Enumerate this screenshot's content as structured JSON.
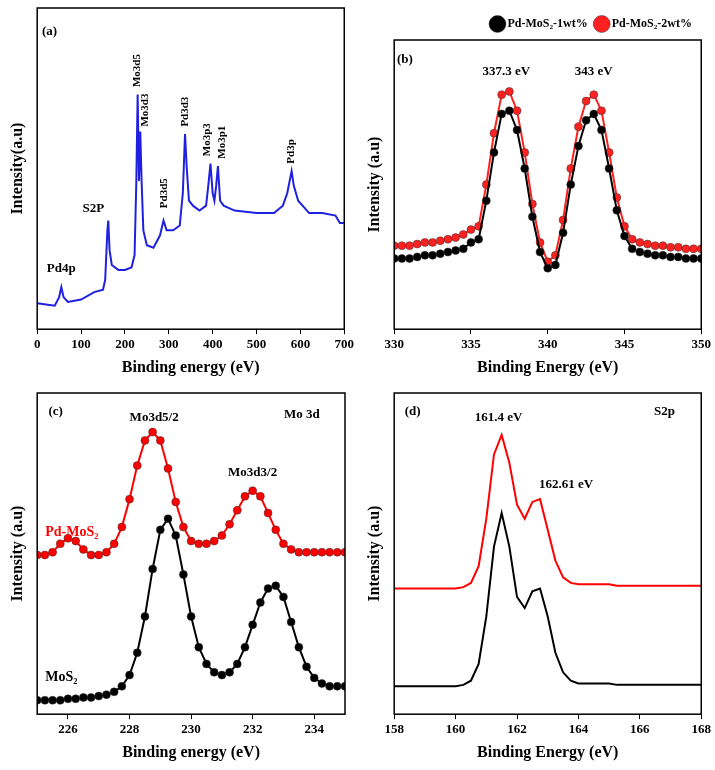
{
  "chart_data": [
    {
      "type": "line",
      "x_label": "Binding energy (eV)",
      "y_label": "Intensity(a.u)",
      "x": [
        0,
        20,
        40,
        50,
        55,
        60,
        70,
        100,
        130,
        150,
        155,
        160,
        162,
        165,
        170,
        185,
        200,
        215,
        222,
        226,
        229,
        232,
        235,
        238,
        242,
        250,
        265,
        280,
        288,
        295,
        310,
        325,
        332,
        337,
        341,
        346,
        355,
        370,
        385,
        390,
        395,
        400,
        404,
        408,
        412,
        417,
        425,
        450,
        500,
        540,
        560,
        570,
        580,
        585,
        595,
        620,
        650,
        680,
        690,
        700
      ],
      "series": [
        {
          "color": "#2020e0",
          "line_style": "solid",
          "values": [
            10.5,
            10,
            9.5,
            13,
            17,
            13,
            11,
            12,
            15,
            16,
            20,
            40,
            44,
            32,
            26,
            24,
            24,
            25,
            30,
            60,
            95,
            60,
            80,
            60,
            40,
            34,
            33,
            38,
            44,
            40,
            40,
            42,
            55,
            79,
            65,
            52,
            50,
            48,
            50,
            58,
            67,
            55,
            52,
            58,
            66,
            52,
            50,
            48,
            47,
            47,
            50,
            55,
            64,
            58,
            52,
            47,
            47,
            46,
            43,
            43
          ]
        }
      ],
      "xlim": [
        0,
        700
      ],
      "xticks": [
        0,
        100,
        200,
        300,
        400,
        500,
        600,
        700
      ],
      "ylim": [
        0,
        130
      ],
      "grid": false,
      "tick_labels": "x",
      "annotations": [
        {
          "text": "(a)",
          "x": 28,
          "y": 118
        },
        {
          "text": "Pd4p",
          "x": 55,
          "y": 22
        },
        {
          "text": "S2P",
          "x": 128,
          "y": 46
        },
        {
          "text": "Mo3d5",
          "x": 229,
          "y": 98
        },
        {
          "text": "Mo3d3",
          "x": 246,
          "y": 82
        },
        {
          "text": "Pd3d5",
          "x": 290,
          "y": 49
        },
        {
          "text": "Pd3d3",
          "x": 337,
          "y": 82
        },
        {
          "text": "Mo3p3",
          "x": 388,
          "y": 70
        },
        {
          "text": "Mo3p1",
          "x": 421,
          "y": 69
        },
        {
          "text": "Pd3p",
          "x": 580,
          "y": 67
        }
      ]
    },
    {
      "type": "line",
      "x_label": "Binding Energy (eV)",
      "y_label": "Intensity (a.u)",
      "x": [
        330,
        330.5,
        331,
        331.5,
        332,
        332.5,
        333,
        333.5,
        334,
        334.5,
        335,
        335.5,
        336,
        336.5,
        337,
        337.5,
        338,
        338.5,
        339,
        339.5,
        340,
        340.5,
        341,
        341.5,
        342,
        342.5,
        343,
        343.5,
        344,
        344.5,
        345,
        345.5,
        346,
        346.5,
        347,
        347.5,
        348,
        348.5,
        349,
        349.5,
        350
      ],
      "series": [
        {
          "name": "Pd-MoS₂-1wt%",
          "color": "#000000",
          "marker": "circle",
          "line_style": "solid",
          "values": [
            32,
            32,
            32,
            32.5,
            33,
            33,
            33.5,
            34,
            34.5,
            35,
            37,
            38,
            50,
            65,
            77,
            78,
            72,
            60,
            45,
            34,
            29,
            30,
            40,
            55,
            67,
            75,
            77,
            72,
            60,
            47,
            39,
            35,
            34,
            33.5,
            33,
            33,
            32.5,
            32.5,
            32,
            32,
            32
          ]
        },
        {
          "name": "Pd-MoS₂-2wt%",
          "color": "#ff2020",
          "marker": "circle",
          "line_style": "solid",
          "values": [
            36,
            36,
            36,
            36.5,
            37,
            37,
            37.5,
            38,
            38.5,
            39.5,
            41,
            42,
            55,
            71,
            83,
            84,
            78,
            65,
            49,
            37,
            31,
            33,
            44,
            60,
            73,
            81,
            83,
            78,
            65,
            51,
            42,
            38,
            37,
            36.5,
            36,
            36,
            35.5,
            35.5,
            35,
            35,
            35
          ]
        }
      ],
      "xlim": [
        330,
        350
      ],
      "xticks": [
        330,
        335,
        340,
        345,
        350
      ],
      "ylim": [
        10,
        100
      ],
      "grid": false,
      "tick_labels": "x",
      "legend": "top-right",
      "annotations": [
        {
          "text": "(b)",
          "x": 330.7,
          "y": 92
        },
        {
          "text": "337.3 eV",
          "x": 337.3,
          "y": 88
        },
        {
          "text": "343 eV",
          "x": 343,
          "y": 88
        }
      ]
    },
    {
      "type": "line",
      "x_label": "Binding energy (eV)",
      "y_label": "Intensity (a.u)",
      "x": [
        225,
        225.25,
        225.5,
        225.75,
        226,
        226.25,
        226.5,
        226.75,
        227,
        227.25,
        227.5,
        227.75,
        228,
        228.25,
        228.5,
        228.75,
        229,
        229.25,
        229.5,
        229.75,
        230,
        230.25,
        230.5,
        230.75,
        231,
        231.25,
        231.5,
        231.75,
        232,
        232.25,
        232.5,
        232.75,
        233,
        233.25,
        233.5,
        233.75,
        234,
        234.25,
        234.5,
        234.75,
        235
      ],
      "series": [
        {
          "name": "Pd-MoS₂",
          "color": "#ff0000",
          "marker": "circle",
          "line_style": "solid",
          "values": [
            57,
            57,
            58,
            61,
            63,
            62,
            59,
            57,
            57,
            58,
            61,
            67,
            77,
            89,
            98,
            101,
            98,
            88,
            76,
            67,
            62,
            61,
            61,
            62,
            64,
            68,
            73,
            78,
            80,
            78,
            72,
            66,
            61,
            59,
            58,
            58,
            58,
            58,
            58,
            58,
            58
          ]
        },
        {
          "name": "MoS₂",
          "color": "#000000",
          "marker": "circle",
          "line_style": "solid",
          "values": [
            5,
            5,
            5,
            5,
            5.5,
            5.5,
            6,
            6,
            6.5,
            7,
            8,
            10,
            14,
            22,
            35,
            52,
            66,
            70,
            64,
            50,
            35,
            24,
            18,
            15,
            14,
            15,
            18,
            24,
            32,
            40,
            45,
            46,
            42,
            33,
            24,
            17,
            13,
            11,
            10,
            10,
            10
          ]
        }
      ],
      "xlim": [
        225,
        235
      ],
      "xticks": [
        226,
        228,
        230,
        232,
        234
      ],
      "ylim": [
        0,
        115
      ],
      "grid": false,
      "tick_labels": "x",
      "annotations": [
        {
          "text": "(c)",
          "x": 225.6,
          "y": 106
        },
        {
          "text": "Mo 3d",
          "x": 233.6,
          "y": 105
        },
        {
          "text": "Mo3d5/2",
          "x": 228.8,
          "y": 104
        },
        {
          "text": "Mo3d3/2",
          "x": 232,
          "y": 84
        }
      ]
    },
    {
      "type": "line",
      "x_label": "Binding Energy (eV)",
      "y_label": "Intensity (a.u)",
      "x": [
        158,
        158.25,
        158.5,
        158.75,
        159,
        159.25,
        159.5,
        159.75,
        160,
        160.25,
        160.5,
        160.75,
        161,
        161.25,
        161.5,
        161.75,
        162,
        162.25,
        162.5,
        162.75,
        163,
        163.25,
        163.5,
        163.75,
        164,
        164.25,
        164.5,
        164.75,
        165,
        165.25,
        165.5,
        165.75,
        166,
        166.25,
        166.5,
        166.75,
        167,
        167.25,
        167.5,
        167.75,
        168
      ],
      "series": [
        {
          "color": "#ff0000",
          "line_style": "solid",
          "values": [
            45,
            45,
            45,
            45,
            45,
            45,
            45,
            45,
            45,
            45.5,
            47,
            53,
            70,
            93,
            100,
            90,
            75,
            70,
            76,
            77,
            66,
            55,
            49,
            47,
            46.5,
            46.5,
            46.5,
            46.5,
            46.5,
            46,
            46,
            46,
            46,
            46,
            46,
            46,
            46,
            46,
            46,
            46,
            46
          ]
        },
        {
          "color": "#000000",
          "line_style": "solid",
          "values": [
            10,
            10,
            10,
            10,
            10,
            10,
            10,
            10,
            10,
            10.5,
            12,
            18,
            35,
            60,
            72,
            60,
            42,
            38,
            44,
            45,
            35,
            22,
            15,
            12,
            11,
            11,
            11,
            11,
            11,
            10.5,
            10.5,
            10.5,
            10.5,
            10.5,
            10.5,
            10.5,
            10.5,
            10.5,
            10.5,
            10.5,
            10.5
          ]
        }
      ],
      "xlim": [
        158,
        168
      ],
      "xticks": [
        158,
        160,
        162,
        164,
        166,
        168
      ],
      "ylim": [
        0,
        115
      ],
      "grid": false,
      "tick_labels": "x",
      "annotations": [
        {
          "text": "(d)",
          "x": 158.6,
          "y": 106
        },
        {
          "text": "S2p",
          "x": 166.8,
          "y": 106
        },
        {
          "text": "161.4 eV",
          "x": 161.4,
          "y": 104
        },
        {
          "text": "162.61 eV",
          "x": 163.6,
          "y": 80
        }
      ]
    }
  ]
}
